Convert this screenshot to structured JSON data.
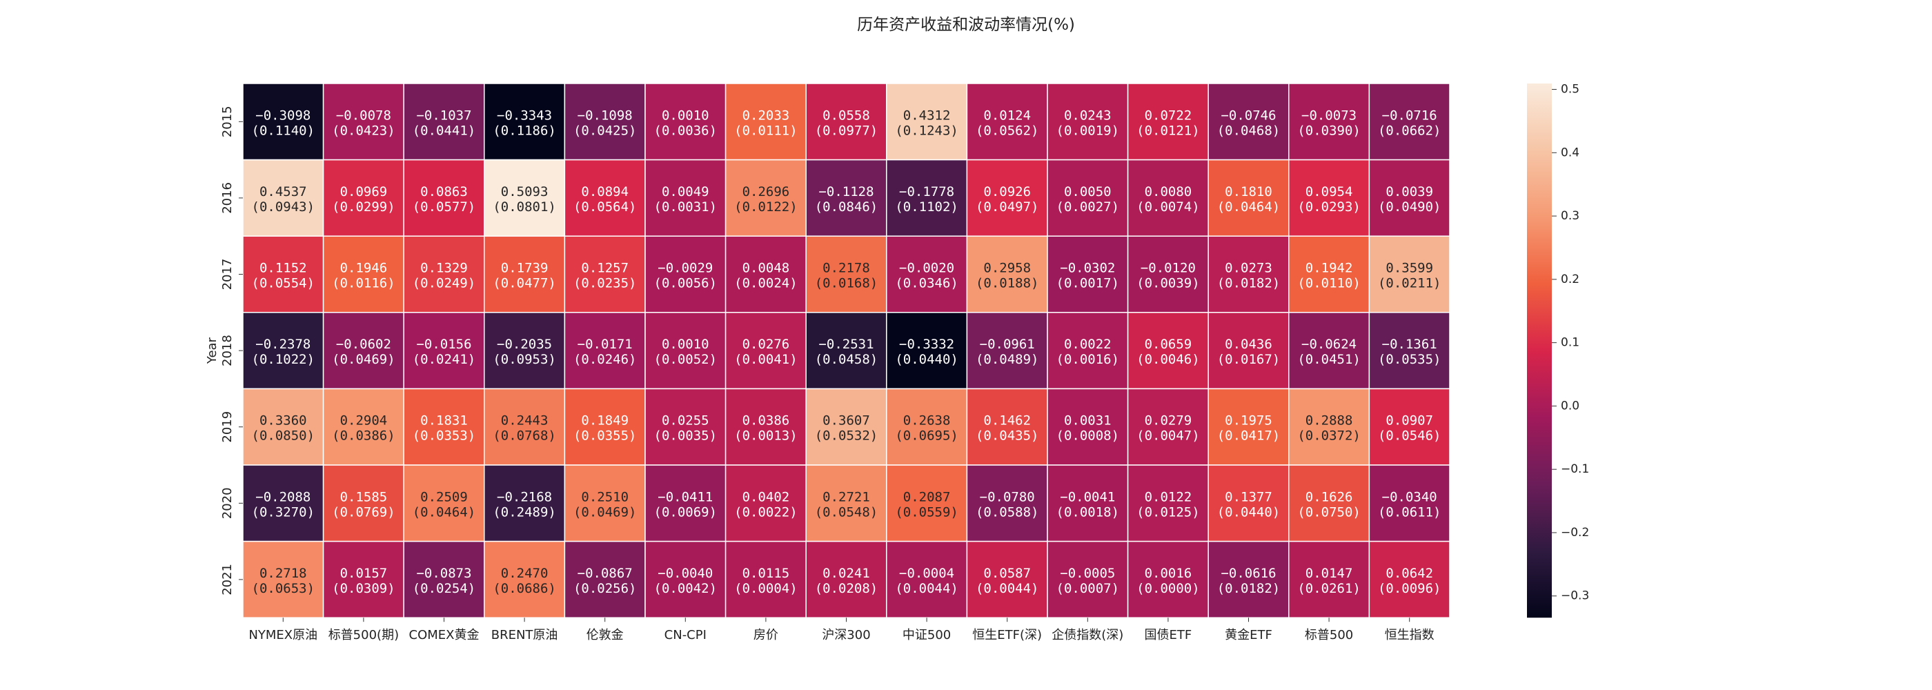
{
  "title": "历年资产收益和波动率情况(%)",
  "chart_data": {
    "type": "heatmap",
    "title": "历年资产收益和波动率情况(%)",
    "xlabel": "",
    "ylabel": "Year",
    "columns": [
      "NYMEX原油",
      "标普500(期)",
      "COMEX黄金",
      "BRENT原油",
      "伦敦金",
      "CN-CPI",
      "房价",
      "沪深300",
      "中证500",
      "恒生ETF(深)",
      "企债指数(深)",
      "国债ETF",
      "黄金ETF",
      "标普500",
      "恒生指数"
    ],
    "rows": [
      "2015",
      "2016",
      "2017",
      "2018",
      "2019",
      "2020",
      "2021"
    ],
    "returns": [
      [
        -0.3098,
        -0.0078,
        -0.1037,
        -0.3343,
        -0.1098,
        0.001,
        0.2033,
        0.0558,
        0.4312,
        0.0124,
        0.0243,
        0.0722,
        -0.0746,
        -0.0073,
        -0.0716
      ],
      [
        0.4537,
        0.0969,
        0.0863,
        0.5093,
        0.0894,
        0.0049,
        0.2696,
        -0.1128,
        -0.1778,
        0.0926,
        0.005,
        0.008,
        0.181,
        0.0954,
        0.0039
      ],
      [
        0.1152,
        0.1946,
        0.1329,
        0.1739,
        0.1257,
        -0.0029,
        0.0048,
        0.2178,
        -0.002,
        0.2958,
        -0.0302,
        -0.012,
        0.0273,
        0.1942,
        0.3599
      ],
      [
        -0.2378,
        -0.0602,
        -0.0156,
        -0.2035,
        -0.0171,
        0.001,
        0.0276,
        -0.2531,
        -0.3332,
        -0.0961,
        0.0022,
        0.0659,
        0.0436,
        -0.0624,
        -0.1361
      ],
      [
        0.336,
        0.2904,
        0.1831,
        0.2443,
        0.1849,
        0.0255,
        0.0386,
        0.3607,
        0.2638,
        0.1462,
        0.0031,
        0.0279,
        0.1975,
        0.2888,
        0.0907
      ],
      [
        -0.2088,
        0.1585,
        0.2509,
        -0.2168,
        0.251,
        -0.0411,
        0.0402,
        0.2721,
        0.2087,
        -0.078,
        -0.0041,
        0.0122,
        0.1377,
        0.1626,
        -0.034
      ],
      [
        0.2718,
        0.0157,
        -0.0873,
        0.247,
        -0.0867,
        -0.004,
        0.0115,
        0.0241,
        -0.0004,
        0.0587,
        -0.0005,
        0.0016,
        -0.0616,
        0.0147,
        0.0642
      ]
    ],
    "volatility": [
      [
        0.114,
        0.0423,
        0.0441,
        0.1186,
        0.0425,
        0.0036,
        0.0111,
        0.0977,
        0.1243,
        0.0562,
        0.0019,
        0.0121,
        0.0468,
        0.039,
        0.0662
      ],
      [
        0.0943,
        0.0299,
        0.0577,
        0.0801,
        0.0564,
        0.0031,
        0.0122,
        0.0846,
        0.1102,
        0.0497,
        0.0027,
        0.0074,
        0.0464,
        0.0293,
        0.049
      ],
      [
        0.0554,
        0.0116,
        0.0249,
        0.0477,
        0.0235,
        0.0056,
        0.0024,
        0.0168,
        0.0346,
        0.0188,
        0.0017,
        0.0039,
        0.0182,
        0.011,
        0.0211
      ],
      [
        0.1022,
        0.0469,
        0.0241,
        0.0953,
        0.0246,
        0.0052,
        0.0041,
        0.0458,
        0.044,
        0.0489,
        0.0016,
        0.0046,
        0.0167,
        0.0451,
        0.0535
      ],
      [
        0.085,
        0.0386,
        0.0353,
        0.0768,
        0.0355,
        0.0035,
        0.0013,
        0.0532,
        0.0695,
        0.0435,
        0.0008,
        0.0047,
        0.0417,
        0.0372,
        0.0546
      ],
      [
        0.327,
        0.0769,
        0.0464,
        0.2489,
        0.0469,
        0.0069,
        0.0022,
        0.0548,
        0.0559,
        0.0588,
        0.0018,
        0.0125,
        0.044,
        0.075,
        0.0611
      ],
      [
        0.0653,
        0.0309,
        0.0254,
        0.0686,
        0.0256,
        0.0042,
        0.0004,
        0.0208,
        0.0044,
        0.0044,
        0.0007,
        0.0,
        0.0182,
        0.0261,
        0.0096
      ]
    ],
    "colormap": "rocket",
    "colorbar": {
      "range": [
        -0.3343,
        0.5093
      ],
      "ticks": [
        "0.5",
        "0.4",
        "0.3",
        "0.2",
        "0.1",
        "0.0",
        "−0.1",
        "−0.2",
        "−0.3"
      ],
      "tick_values": [
        0.5,
        0.4,
        0.3,
        0.2,
        0.1,
        0.0,
        -0.1,
        -0.2,
        -0.3
      ]
    },
    "colormap_stops": [
      "#03051a",
      "#2f1a40",
      "#6b1d59",
      "#a11a5b",
      "#d8254a",
      "#f0603e",
      "#f59a73",
      "#f6c5a6",
      "#faebdd"
    ]
  }
}
